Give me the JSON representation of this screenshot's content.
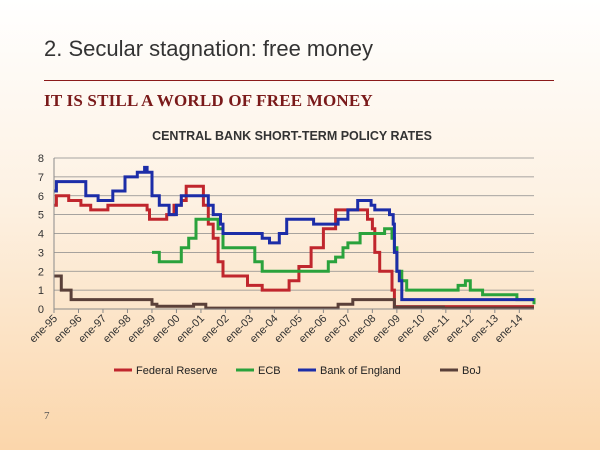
{
  "slide": {
    "title": "2. Secular stagnation: free money",
    "subtitle": "IT IS STILL A WORLD OF FREE MONEY",
    "page_number": "7"
  },
  "chart_data": {
    "type": "line",
    "title": "CENTRAL BANK SHORT-TERM POLICY RATES",
    "xlabel": "",
    "ylabel": "",
    "xlim": [
      1995,
      2014.6
    ],
    "ylim": [
      0,
      8
    ],
    "yticks": [
      0,
      1,
      2,
      3,
      4,
      5,
      6,
      7,
      8
    ],
    "x_tick_labels": [
      "ene-95",
      "ene-96",
      "ene-97",
      "ene-98",
      "ene-99",
      "ene-00",
      "ene-01",
      "ene-02",
      "ene-03",
      "ene-04",
      "ene-05",
      "ene-06",
      "ene-07",
      "ene-08",
      "ene-09",
      "ene-10",
      "ene-11",
      "ene-12",
      "ene-13",
      "ene-14"
    ],
    "grid": true,
    "legend_position": "bottom",
    "series": [
      {
        "name": "Federal Reserve",
        "color": "#c0262d",
        "x": [
          1995.0,
          1995.1,
          1995.5,
          1995.6,
          1996.0,
          1996.1,
          1996.5,
          1997.2,
          1998.7,
          1998.8,
          1998.9,
          1999.5,
          1999.6,
          1999.9,
          2000.2,
          2000.4,
          2001.0,
          2001.1,
          2001.3,
          2001.5,
          2001.7,
          2001.9,
          2002.9,
          2003.5,
          2004.5,
          2004.6,
          2005.0,
          2005.5,
          2006.0,
          2006.5,
          2007.7,
          2007.8,
          2008.0,
          2008.1,
          2008.3,
          2008.8,
          2008.9,
          2014.6
        ],
        "y": [
          5.5,
          6.0,
          6.0,
          5.75,
          5.75,
          5.5,
          5.25,
          5.5,
          5.5,
          5.25,
          4.75,
          4.75,
          5.0,
          5.5,
          5.75,
          6.5,
          6.5,
          5.5,
          4.5,
          3.75,
          2.5,
          1.75,
          1.25,
          1.0,
          1.0,
          1.5,
          2.25,
          3.25,
          4.25,
          5.25,
          5.25,
          4.75,
          4.25,
          3.0,
          2.0,
          1.0,
          0.125,
          0.125
        ]
      },
      {
        "name": "ECB",
        "color": "#2aa23c",
        "x": [
          1999.0,
          1999.3,
          1999.9,
          2000.2,
          2000.5,
          2000.8,
          2001.4,
          2001.7,
          2001.9,
          2002.9,
          2003.2,
          2003.5,
          2005.9,
          2006.2,
          2006.5,
          2006.8,
          2007.0,
          2007.5,
          2008.5,
          2008.8,
          2008.9,
          2009.0,
          2009.2,
          2009.4,
          2011.3,
          2011.5,
          2011.8,
          2012.0,
          2012.5,
          2013.3,
          2013.9,
          2014.6
        ],
        "y": [
          3.0,
          2.5,
          2.5,
          3.25,
          3.75,
          4.75,
          4.75,
          4.25,
          3.25,
          3.25,
          2.5,
          2.0,
          2.0,
          2.5,
          2.75,
          3.25,
          3.5,
          4.0,
          4.25,
          3.75,
          3.25,
          2.0,
          1.5,
          1.0,
          1.0,
          1.25,
          1.5,
          1.0,
          0.75,
          0.75,
          0.5,
          0.25
        ]
      },
      {
        "name": "Bank of England",
        "color": "#1c2da8",
        "x": [
          1995.0,
          1995.1,
          1995.9,
          1996.3,
          1996.8,
          1997.4,
          1997.9,
          1998.4,
          1998.7,
          1998.8,
          1999.0,
          1999.3,
          1999.7,
          2000.0,
          2000.2,
          2001.0,
          2001.3,
          2001.5,
          2001.8,
          2001.9,
          2003.1,
          2003.5,
          2003.8,
          2004.2,
          2004.5,
          2005.6,
          2006.6,
          2007.0,
          2007.4,
          2007.7,
          2007.95,
          2008.1,
          2008.7,
          2008.85,
          2008.9,
          2009.0,
          2009.1,
          2009.2,
          2014.6
        ],
        "y": [
          6.25,
          6.75,
          6.75,
          6.0,
          5.75,
          6.25,
          7.0,
          7.25,
          7.5,
          7.25,
          6.0,
          5.5,
          5.0,
          5.5,
          6.0,
          6.0,
          5.5,
          5.0,
          4.5,
          4.0,
          4.0,
          3.75,
          3.5,
          4.0,
          4.75,
          4.5,
          4.75,
          5.25,
          5.75,
          5.75,
          5.5,
          5.25,
          5.0,
          4.5,
          3.0,
          2.0,
          1.5,
          0.5,
          0.5
        ]
      },
      {
        "name": "BoJ",
        "color": "#5a4039",
        "x": [
          1995.0,
          1995.2,
          1995.3,
          1995.7,
          1998.7,
          1999.0,
          1999.2,
          2000.6,
          2000.7,
          2001.1,
          2001.2,
          2006.5,
          2006.6,
          2007.1,
          2007.2,
          2008.8,
          2008.9,
          2010.8,
          2010.9,
          2014.6
        ],
        "y": [
          1.75,
          1.75,
          1.0,
          0.5,
          0.5,
          0.25,
          0.15,
          0.15,
          0.25,
          0.25,
          0.05,
          0.05,
          0.25,
          0.25,
          0.5,
          0.5,
          0.1,
          0.1,
          0.05,
          0.05
        ]
      }
    ]
  }
}
